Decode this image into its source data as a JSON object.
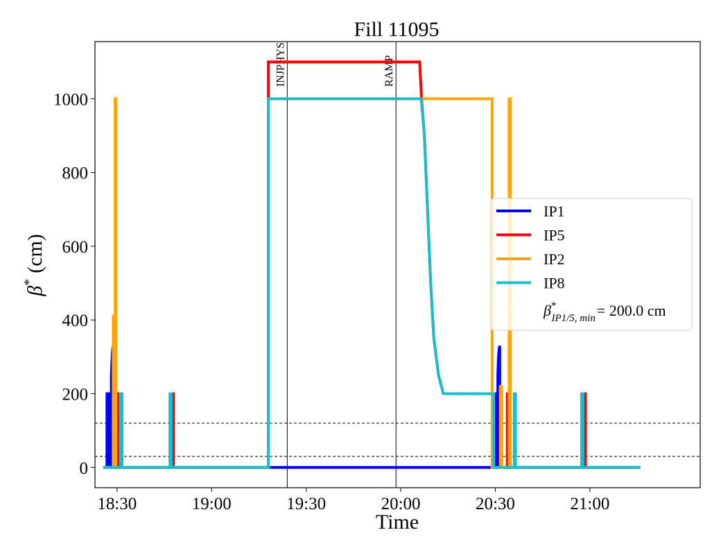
{
  "chart_data": {
    "type": "line",
    "title": "Fill 11095",
    "xlabel": "Time",
    "ylabel_symbol": "β",
    "ylabel_sup": "*",
    "ylabel_unit": "(cm)",
    "xlim": [
      "18:23",
      "21:35"
    ],
    "ylim": [
      -55,
      1155
    ],
    "x_ticks": [
      "18:30",
      "19:00",
      "19:30",
      "20:00",
      "20:30",
      "21:00"
    ],
    "y_ticks": [
      0,
      200,
      400,
      600,
      800,
      1000
    ],
    "grid": false,
    "legend_position": "center-right",
    "legend_extra_label": {
      "symbol": "β",
      "sup": "*",
      "sub": "IP1/5, min",
      "value_text": "= 200.0 cm"
    },
    "vertical_lines": [
      {
        "x": "19:24",
        "label": "INJPHYS"
      },
      {
        "x": "19:58.5",
        "label": "RAMP"
      }
    ],
    "horizontal_lines": [
      30,
      120
    ],
    "series": [
      {
        "name": "IP1",
        "color": "#0000ff",
        "points": [
          [
            "18:25.6",
            0
          ],
          [
            "18:26.8",
            0
          ],
          [
            "18:26.8",
            200
          ],
          [
            "18:27",
            200
          ],
          [
            "18:27",
            0
          ],
          [
            "18:27.2",
            0
          ],
          [
            "18:27.2",
            200
          ],
          [
            "18:27.4",
            200
          ],
          [
            "18:27.4",
            0
          ],
          [
            "18:27.6",
            0
          ],
          [
            "18:27.6",
            200
          ],
          [
            "18:27.8",
            200
          ],
          [
            "18:27.8",
            0
          ],
          [
            "18:28.2",
            0
          ],
          [
            "18:28.2",
            250
          ],
          [
            "18:28.4",
            290
          ],
          [
            "18:28.6",
            320
          ],
          [
            "18:28.8",
            330
          ],
          [
            "18:28.8",
            0
          ],
          [
            "18:47",
            0
          ],
          [
            "18:47",
            200
          ],
          [
            "18:47.4",
            200
          ],
          [
            "18:47.4",
            0
          ],
          [
            "20:29.6",
            0
          ],
          [
            "20:29.6",
            200
          ],
          [
            "20:29.8",
            200
          ],
          [
            "20:29.8",
            0
          ],
          [
            "20:30.2",
            0
          ],
          [
            "20:30.2",
            200
          ],
          [
            "20:30.4",
            200
          ],
          [
            "20:30.4",
            0
          ],
          [
            "20:30.8",
            0
          ],
          [
            "20:30.8",
            250
          ],
          [
            "20:31",
            300
          ],
          [
            "20:31.2",
            320
          ],
          [
            "20:31.4",
            330
          ],
          [
            "20:31.4",
            0
          ],
          [
            "20:57.4",
            0
          ],
          [
            "20:57.4",
            200
          ],
          [
            "20:57.8",
            200
          ],
          [
            "20:57.8",
            0
          ],
          [
            "21:16",
            0
          ]
        ]
      },
      {
        "name": "IP5",
        "color": "#ff0000",
        "points": [
          [
            "18:25.6",
            0
          ],
          [
            "18:30",
            0
          ],
          [
            "18:30",
            200
          ],
          [
            "18:30.3",
            200
          ],
          [
            "18:30.3",
            0
          ],
          [
            "18:47.6",
            0
          ],
          [
            "18:47.6",
            200
          ],
          [
            "18:47.9",
            200
          ],
          [
            "18:47.9",
            0
          ],
          [
            "19:18",
            0
          ],
          [
            "19:18",
            1100
          ],
          [
            "20:06",
            1100
          ],
          [
            "20:06.6",
            1000
          ],
          [
            "20:07.5",
            900
          ],
          [
            "20:08.5",
            700
          ],
          [
            "20:09.5",
            500
          ],
          [
            "20:10.5",
            350
          ],
          [
            "20:12",
            250
          ],
          [
            "20:13.5",
            200
          ],
          [
            "20:29.5",
            200
          ],
          [
            "20:29.5",
            0
          ],
          [
            "20:33.8",
            0
          ],
          [
            "20:33.8",
            200
          ],
          [
            "20:34.2",
            200
          ],
          [
            "20:34.2",
            0
          ],
          [
            "20:58.3",
            0
          ],
          [
            "20:58.3",
            200
          ],
          [
            "20:58.6",
            200
          ],
          [
            "20:58.6",
            0
          ],
          [
            "21:16",
            0
          ]
        ]
      },
      {
        "name": "IP2",
        "color": "#ffa500",
        "points": [
          [
            "18:25.6",
            0
          ],
          [
            "18:28.8",
            0
          ],
          [
            "18:28.8",
            410
          ],
          [
            "18:29.2",
            410
          ],
          [
            "18:29.2",
            0
          ],
          [
            "18:29.4",
            0
          ],
          [
            "18:29.4",
            1000
          ],
          [
            "18:29.6",
            1000
          ],
          [
            "18:29.6",
            0
          ],
          [
            "19:18",
            0
          ],
          [
            "19:18",
            1000
          ],
          [
            "20:29",
            1000
          ],
          [
            "20:29",
            0
          ],
          [
            "20:31.6",
            0
          ],
          [
            "20:31.6",
            220
          ],
          [
            "20:32",
            220
          ],
          [
            "20:32",
            0
          ],
          [
            "20:34.4",
            0
          ],
          [
            "20:34.4",
            1000
          ],
          [
            "20:34.8",
            1000
          ],
          [
            "20:34.8",
            0
          ],
          [
            "21:16",
            0
          ]
        ]
      },
      {
        "name": "IP8",
        "color": "#17becf",
        "points": [
          [
            "18:25.6",
            0
          ],
          [
            "18:31.2",
            0
          ],
          [
            "18:31.2",
            200
          ],
          [
            "18:31.6",
            200
          ],
          [
            "18:31.6",
            0
          ],
          [
            "18:46.8",
            0
          ],
          [
            "18:46.8",
            200
          ],
          [
            "18:47.2",
            200
          ],
          [
            "18:47.2",
            0
          ],
          [
            "19:18",
            0
          ],
          [
            "19:18",
            1000
          ],
          [
            "20:06.5",
            1000
          ],
          [
            "20:07.5",
            900
          ],
          [
            "20:08.5",
            700
          ],
          [
            "20:09.5",
            500
          ],
          [
            "20:10.5",
            350
          ],
          [
            "20:12",
            250
          ],
          [
            "20:13.5",
            200
          ],
          [
            "20:29.5",
            200
          ],
          [
            "20:29.5",
            0
          ],
          [
            "20:36",
            0
          ],
          [
            "20:36",
            200
          ],
          [
            "20:36.4",
            200
          ],
          [
            "20:36.4",
            0
          ],
          [
            "20:57.4",
            0
          ],
          [
            "20:57.4",
            200
          ],
          [
            "20:57.8",
            200
          ],
          [
            "20:57.8",
            0
          ],
          [
            "21:16",
            0
          ]
        ]
      }
    ]
  }
}
